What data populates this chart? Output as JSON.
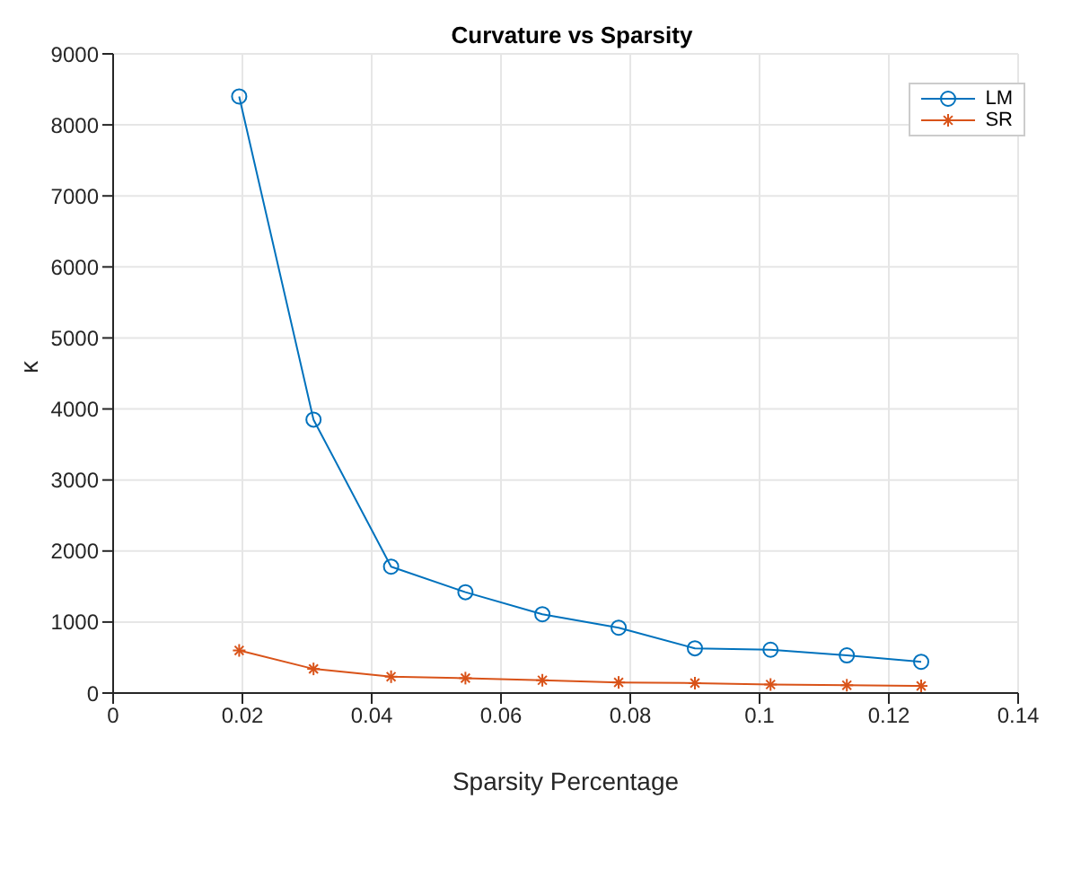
{
  "chart_data": {
    "type": "line",
    "title": "Curvature vs Sparsity",
    "xlabel": "Sparsity Percentage",
    "ylabel": "κ",
    "xlim": [
      0,
      0.14
    ],
    "xticks": [
      0,
      0.02,
      0.04,
      0.06,
      0.08,
      0.1,
      0.12,
      0.14
    ],
    "ylim": [
      0,
      9000
    ],
    "yticks": [
      0,
      1000,
      2000,
      3000,
      4000,
      5000,
      6000,
      7000,
      8000,
      9000
    ],
    "grid": true,
    "legend": "top right",
    "x": [
      0.0195,
      0.031,
      0.043,
      0.0545,
      0.0664,
      0.0782,
      0.09,
      0.1017,
      0.1135,
      0.125
    ],
    "series": [
      {
        "name": "LM",
        "color": "#0072bd",
        "marker": "circle",
        "values": [
          8400,
          3850,
          1780,
          1420,
          1110,
          920,
          630,
          610,
          530,
          440
        ]
      },
      {
        "name": "SR",
        "color": "#d95319",
        "marker": "cross",
        "values": [
          600,
          340,
          230,
          210,
          180,
          150,
          140,
          120,
          110,
          100
        ]
      }
    ]
  }
}
